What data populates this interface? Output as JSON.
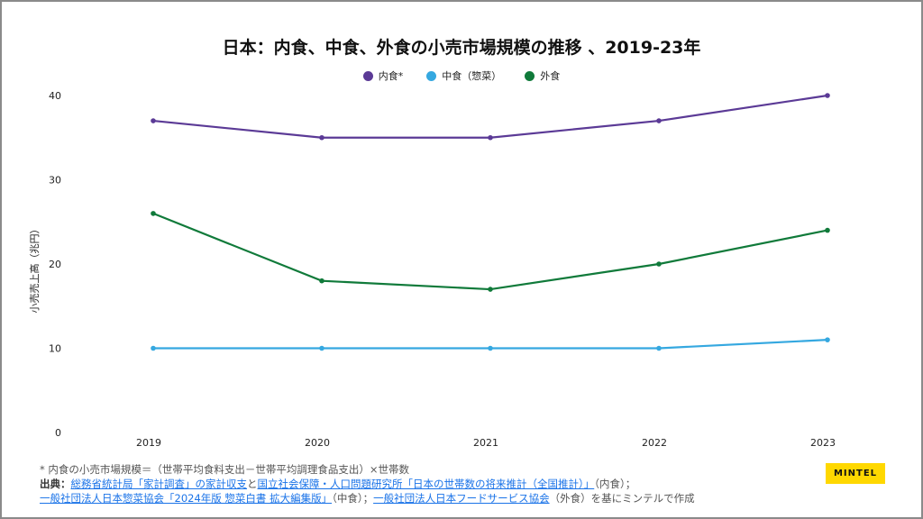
{
  "chart_data": {
    "type": "line",
    "title": "日本：内食、中食、外食の小売市場規模の推移 、2019-23年",
    "ylabel": "小売売上高（兆円）",
    "xlabel": "",
    "categories": [
      "2019",
      "2020",
      "2021",
      "2022",
      "2023"
    ],
    "yticks": [
      "0",
      "10",
      "20",
      "30",
      "40"
    ],
    "ylim": [
      0,
      40
    ],
    "legend_position": "top-center",
    "series": [
      {
        "name": "内食*",
        "color": "#5b3a96",
        "values": [
          37,
          35,
          35,
          37,
          40
        ]
      },
      {
        "name": "中食（惣菜）",
        "color": "#35a8e0",
        "values": [
          10,
          10,
          10,
          10,
          11
        ]
      },
      {
        "name": "外食",
        "color": "#107a3a",
        "values": [
          26,
          18,
          17,
          20,
          24
        ]
      }
    ]
  },
  "footnote": {
    "line1": "* 内食の小売市場規模＝（世帯平均食料支出－世帯平均調理食品支出）×世帯数",
    "source_label": "出典：",
    "link1": "総務省統計局「家計調査」の家計収支",
    "text1": "と",
    "link2": "国立社会保障・人口問題研究所「日本の世帯数の将来推計（全国推計）」",
    "text2": "（内食）；",
    "link3": "一般社団法人日本惣菜協会「2024年版 惣菜白書 拡大編集版」",
    "text3": "（中食）；",
    "link4": "一般社団法人日本フードサービス協会",
    "text4": "（外食）を基にミンテルで作成"
  },
  "logo": "MINTEL"
}
